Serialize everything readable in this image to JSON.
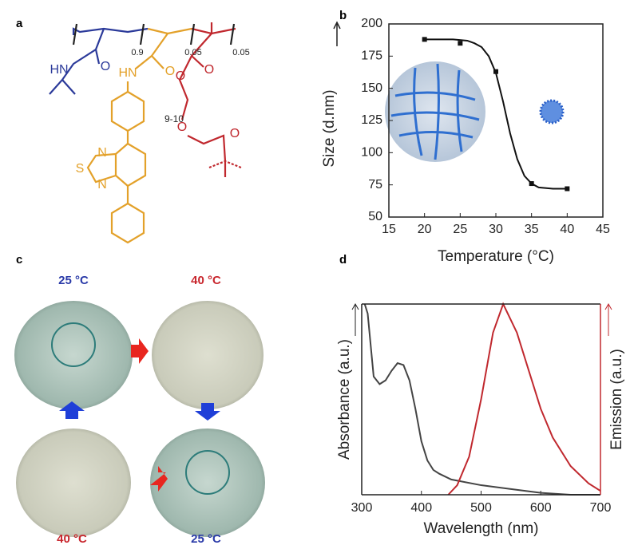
{
  "panel_labels": [
    "a",
    "b",
    "c",
    "d"
  ],
  "structure": {
    "labels": [
      {
        "text": "HN",
        "color": "#2b3a9a"
      },
      {
        "text": "O",
        "color": "#2b3a9a"
      },
      {
        "text": "0.9",
        "color": "#222222"
      },
      {
        "text": "HN",
        "color": "#e3a12a"
      },
      {
        "text": "O",
        "color": "#e3a12a"
      },
      {
        "text": "0.05",
        "color": "#222222"
      },
      {
        "text": "0.05",
        "color": "#222222"
      },
      {
        "text": "O",
        "color": "#c0282e"
      },
      {
        "text": "O",
        "color": "#c0282e"
      },
      {
        "text": "9-10",
        "color": "#222222"
      },
      {
        "text": "O",
        "color": "#c0282e"
      },
      {
        "text": "O",
        "color": "#c0282e"
      },
      {
        "text": "N",
        "color": "#e3a12a"
      },
      {
        "text": "S",
        "color": "#e3a12a"
      },
      {
        "text": "N",
        "color": "#e3a12a"
      }
    ]
  },
  "photos": {
    "labels": [
      {
        "text": "25 °C",
        "color": "#2a3aa8"
      },
      {
        "text": "40 °C",
        "color": "#c8262d"
      },
      {
        "text": "40 °C",
        "color": "#c8262d"
      },
      {
        "text": "25 °C",
        "color": "#2a3aa8"
      }
    ]
  },
  "chart_data": [
    {
      "type": "scatter",
      "x_label": "Temperature (°C)",
      "y_label": "Size (d.nm)",
      "x": [
        20,
        25,
        30,
        35,
        40
      ],
      "values": [
        188,
        185,
        163,
        76,
        72
      ],
      "color": "#111111",
      "fit": {
        "x": [
          20,
          22,
          24,
          26,
          27,
          28,
          29,
          30,
          31,
          32,
          33,
          34,
          35,
          36,
          38,
          40
        ],
        "values": [
          188,
          188,
          188,
          187,
          185,
          182,
          175,
          162,
          140,
          115,
          95,
          82,
          76,
          73,
          72,
          72
        ]
      },
      "xlim": [
        15,
        45
      ],
      "xticks": [
        15,
        20,
        25,
        30,
        35,
        40,
        45
      ],
      "ylim": [
        50,
        200
      ],
      "yticks": [
        50,
        75,
        100,
        125,
        150,
        175,
        200
      ]
    },
    {
      "type": "line",
      "x_label": "Wavelength (nm)",
      "y_label": "Absorbance (a.u.)",
      "y2_label": "Emission (a.u.)",
      "xlim": [
        300,
        700
      ],
      "xticks": [
        300,
        400,
        500,
        600,
        700
      ],
      "ylim": [
        0,
        1
      ],
      "y2lim": [
        0,
        1
      ],
      "series": [
        {
          "name": "Absorbance",
          "color": "#444444",
          "axis": "y",
          "x": [
            305,
            310,
            320,
            330,
            340,
            350,
            360,
            370,
            380,
            390,
            400,
            410,
            420,
            430,
            450,
            500,
            550,
            600,
            650,
            700
          ],
          "values": [
            1.0,
            0.95,
            0.62,
            0.58,
            0.6,
            0.65,
            0.69,
            0.68,
            0.6,
            0.45,
            0.28,
            0.18,
            0.13,
            0.11,
            0.08,
            0.05,
            0.03,
            0.01,
            0.0,
            0.0
          ]
        },
        {
          "name": "Emission",
          "color": "#c0282e",
          "axis": "y2",
          "x": [
            445,
            460,
            480,
            500,
            520,
            537,
            560,
            580,
            600,
            620,
            650,
            680,
            700
          ],
          "values": [
            0.0,
            0.05,
            0.2,
            0.5,
            0.85,
            1.0,
            0.85,
            0.65,
            0.45,
            0.3,
            0.15,
            0.06,
            0.02
          ]
        }
      ]
    }
  ]
}
